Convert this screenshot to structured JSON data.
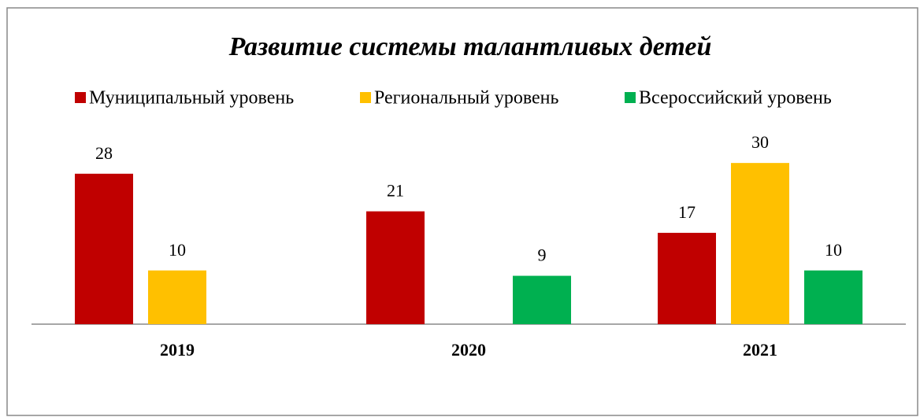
{
  "chart_data": {
    "type": "bar",
    "title": "Развитие системы талантливых детей",
    "categories": [
      "2019",
      "2020",
      "2021"
    ],
    "series": [
      {
        "name": "Муниципальный уровень",
        "color": "#c00000",
        "values": [
          28,
          21,
          17
        ]
      },
      {
        "name": "Региональный уровень",
        "color": "#ffc000",
        "values": [
          10,
          null,
          30
        ]
      },
      {
        "name": "Всероссийский уровень",
        "color": "#00b050",
        "values": [
          null,
          9,
          10
        ]
      }
    ],
    "ylim": [
      0,
      35
    ],
    "legend": "top"
  }
}
